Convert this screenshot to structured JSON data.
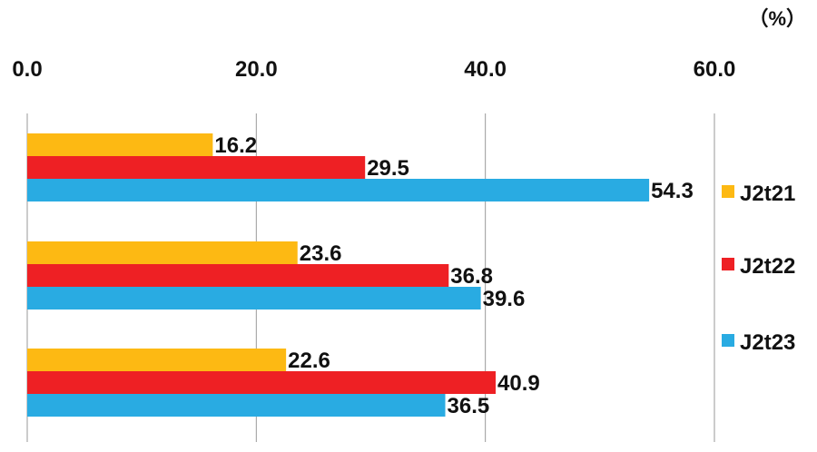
{
  "chart_data": {
    "type": "bar",
    "orientation": "horizontal",
    "unit": "（%）",
    "xlim": [
      0,
      60
    ],
    "ticks": [
      0,
      20,
      40,
      60
    ],
    "tick_labels": [
      "0.0",
      "20.0",
      "40.0",
      "60.0"
    ],
    "groups": 3,
    "series": [
      {
        "name": "J2t21",
        "color": "#FDB913",
        "values": [
          16.2,
          23.6,
          22.6
        ],
        "labels": [
          "16.2",
          "23.6",
          "22.6"
        ]
      },
      {
        "name": "J2t22",
        "color": "#EE2024",
        "values": [
          29.5,
          36.8,
          40.9
        ],
        "labels": [
          "29.5",
          "36.8",
          "40.9"
        ]
      },
      {
        "name": "J2t23",
        "color": "#29ABE2",
        "values": [
          54.3,
          39.6,
          36.5
        ],
        "labels": [
          "54.3",
          "39.6",
          "36.5"
        ]
      }
    ],
    "grid": true,
    "legend_position": "right"
  }
}
